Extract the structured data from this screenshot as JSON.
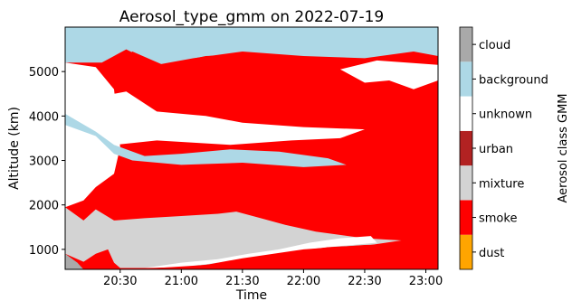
{
  "chart_data": {
    "type": "heatmap",
    "title": "Aerosol_type_gmm on 2022-07-19",
    "xlabel": "Time",
    "ylabel": "Altitude (km)",
    "x_tick_labels": [
      "20:30",
      "21:00",
      "21:30",
      "22:00",
      "22:30",
      "23:00"
    ],
    "x_tick_hours": [
      20.5,
      21.0,
      21.5,
      22.0,
      22.5,
      23.0
    ],
    "xlim_hours": [
      20.05,
      23.1
    ],
    "ylim": [
      550,
      6000
    ],
    "y_ticks": [
      1000,
      2000,
      3000,
      4000,
      5000
    ],
    "colorbar": {
      "label": "Aerosol class GMM",
      "classes": [
        {
          "name": "dust",
          "color": "#ffa500"
        },
        {
          "name": "smoke",
          "color": "#ff0000"
        },
        {
          "name": "mixture",
          "color": "#d3d3d3"
        },
        {
          "name": "urban",
          "color": "#b22222"
        },
        {
          "name": "unknown",
          "color": "#ffffff"
        },
        {
          "name": "background",
          "color": "#add8e6"
        },
        {
          "name": "cloud",
          "color": "#a9a9a9"
        }
      ]
    },
    "regions": [
      {
        "class": "background",
        "polygon": [
          [
            20.05,
            6000
          ],
          [
            23.1,
            6000
          ],
          [
            23.1,
            5350
          ],
          [
            22.9,
            5450
          ],
          [
            22.5,
            5300
          ],
          [
            22.0,
            5350
          ],
          [
            21.5,
            5450
          ],
          [
            21.1,
            5300
          ],
          [
            20.8,
            5150
          ],
          [
            20.55,
            5500
          ],
          [
            20.35,
            5200
          ],
          [
            20.05,
            5200
          ]
        ]
      },
      {
        "class": "smoke",
        "polygon": [
          [
            20.4,
            5050
          ],
          [
            20.6,
            5450
          ],
          [
            20.85,
            5150
          ],
          [
            21.2,
            5350
          ],
          [
            21.6,
            5400
          ],
          [
            22.1,
            5300
          ],
          [
            22.6,
            5250
          ],
          [
            23.1,
            5150
          ],
          [
            23.1,
            500
          ],
          [
            20.05,
            500
          ],
          [
            20.05,
            2300
          ],
          [
            20.25,
            2700
          ],
          [
            20.35,
            3500
          ],
          [
            20.4,
            4200
          ]
        ]
      },
      {
        "class": "unknown",
        "polygon": [
          [
            20.05,
            5200
          ],
          [
            20.3,
            5100
          ],
          [
            20.45,
            4600
          ],
          [
            20.5,
            3300
          ],
          [
            20.45,
            2700
          ],
          [
            20.3,
            2400
          ],
          [
            20.2,
            2100
          ],
          [
            20.05,
            1950
          ]
        ]
      },
      {
        "class": "background",
        "polygon": [
          [
            20.05,
            4050
          ],
          [
            20.35,
            3850
          ],
          [
            20.4,
            3700
          ],
          [
            20.45,
            3350
          ],
          [
            20.7,
            3100
          ],
          [
            21.0,
            3150
          ],
          [
            21.4,
            3250
          ],
          [
            21.8,
            3200
          ],
          [
            22.2,
            3050
          ],
          [
            22.35,
            2900
          ],
          [
            22.0,
            2850
          ],
          [
            21.5,
            2950
          ],
          [
            21.0,
            2900
          ],
          [
            20.6,
            3000
          ],
          [
            20.45,
            3150
          ],
          [
            20.3,
            3550
          ],
          [
            20.05,
            3800
          ]
        ]
      },
      {
        "class": "unknown",
        "polygon": [
          [
            20.05,
            4050
          ],
          [
            20.45,
            4500
          ],
          [
            20.55,
            4550
          ],
          [
            20.8,
            4100
          ],
          [
            21.2,
            4000
          ],
          [
            21.5,
            3850
          ],
          [
            22.0,
            3750
          ],
          [
            22.5,
            3700
          ],
          [
            22.3,
            3500
          ],
          [
            21.9,
            3450
          ],
          [
            21.4,
            3350
          ],
          [
            20.8,
            3450
          ],
          [
            20.45,
            3350
          ],
          [
            20.3,
            3650
          ]
        ]
      },
      {
        "class": "unknown",
        "polygon": [
          [
            22.3,
            5050
          ],
          [
            22.6,
            5250
          ],
          [
            23.1,
            5150
          ],
          [
            23.1,
            4800
          ],
          [
            22.9,
            4600
          ],
          [
            22.7,
            4800
          ],
          [
            22.5,
            4750
          ]
        ]
      },
      {
        "class": "mixture",
        "polygon": [
          [
            20.05,
            1950
          ],
          [
            20.2,
            1650
          ],
          [
            20.3,
            1900
          ],
          [
            20.45,
            1650
          ],
          [
            20.7,
            1700
          ],
          [
            21.0,
            1750
          ],
          [
            21.3,
            1800
          ],
          [
            21.45,
            1850
          ],
          [
            21.65,
            1700
          ],
          [
            21.85,
            1550
          ],
          [
            22.1,
            1400
          ],
          [
            22.5,
            1250
          ],
          [
            22.8,
            1200
          ],
          [
            22.55,
            1100
          ],
          [
            22.2,
            1050
          ],
          [
            21.9,
            950
          ],
          [
            21.6,
            820
          ],
          [
            21.3,
            680
          ],
          [
            21.0,
            600
          ],
          [
            20.7,
            580
          ],
          [
            20.5,
            580
          ],
          [
            20.45,
            700
          ],
          [
            20.4,
            1000
          ],
          [
            20.3,
            900
          ],
          [
            20.2,
            720
          ],
          [
            20.05,
            900
          ]
        ]
      },
      {
        "class": "unknown",
        "polygon": [
          [
            20.7,
            580
          ],
          [
            21.0,
            700
          ],
          [
            21.3,
            780
          ],
          [
            21.55,
            900
          ],
          [
            21.8,
            1000
          ],
          [
            22.05,
            1150
          ],
          [
            22.3,
            1250
          ],
          [
            22.55,
            1300
          ],
          [
            22.6,
            1150
          ],
          [
            22.2,
            1050
          ],
          [
            21.9,
            950
          ],
          [
            21.6,
            820
          ],
          [
            21.3,
            700
          ],
          [
            21.0,
            600
          ]
        ]
      },
      {
        "class": "cloud",
        "polygon": [
          [
            20.05,
            900
          ],
          [
            20.15,
            700
          ],
          [
            20.2,
            550
          ],
          [
            20.05,
            550
          ]
        ]
      },
      {
        "class": "smoke",
        "polygon": [
          [
            20.25,
            550
          ],
          [
            20.8,
            580
          ],
          [
            21.2,
            650
          ],
          [
            21.5,
            800
          ],
          [
            22.0,
            1000
          ],
          [
            22.5,
            1100
          ],
          [
            23.1,
            1150
          ],
          [
            23.1,
            550
          ]
        ]
      }
    ]
  }
}
